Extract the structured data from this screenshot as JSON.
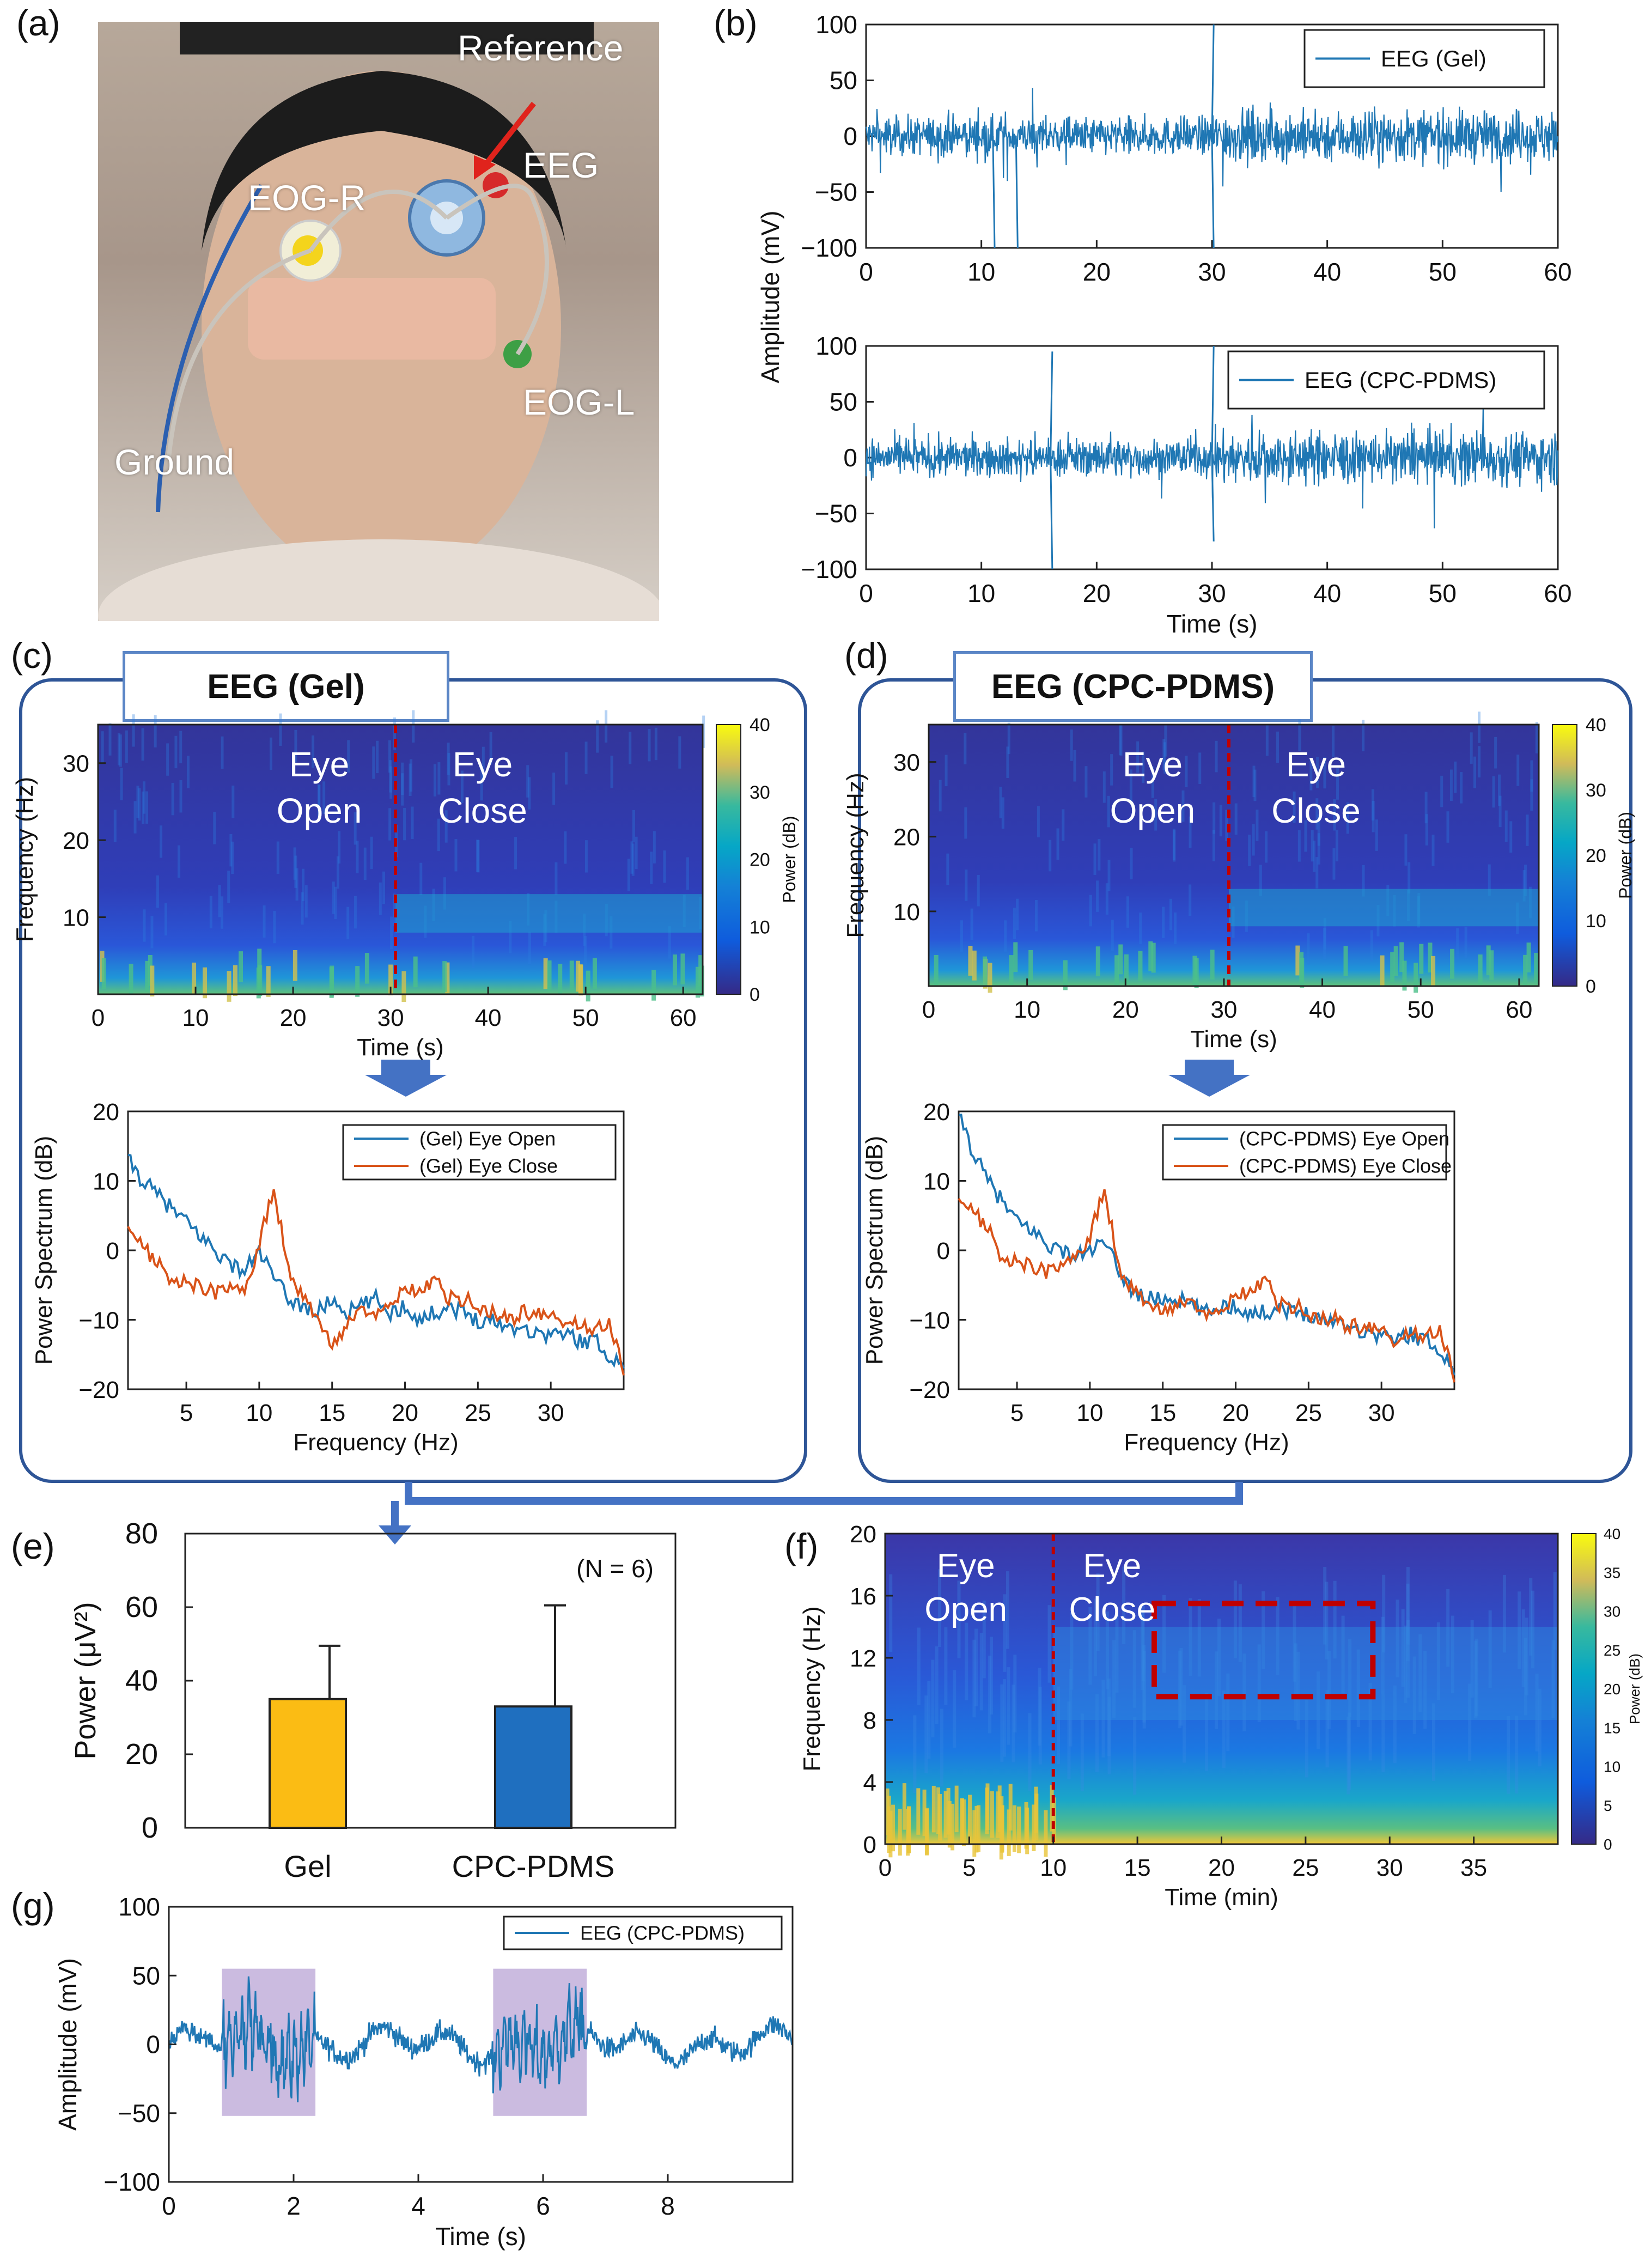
{
  "panels": {
    "a": "(a)",
    "b": "(b)",
    "c": "(c)",
    "d": "(d)",
    "e": "(e)",
    "f": "(f)",
    "g": "(g)"
  },
  "photo_labels": {
    "reference": "Reference",
    "eeg": "EEG",
    "eog_r": "EOG-R",
    "eog_l": "EOG-L",
    "ground": "Ground"
  },
  "box_titles": {
    "c": "EEG (Gel)",
    "d": "EEG (CPC-PDMS)"
  },
  "colors": {
    "blue_line": "#1f77b4",
    "orange_line": "#d95319",
    "box_border": "#2e5597",
    "arrow": "#4472c4",
    "bar_gel": "#fbbc14",
    "bar_cpc": "#1f6fbf",
    "highlight": "#b9a4d6",
    "marker": "#c00000"
  },
  "chart_data": [
    {
      "id": "b1",
      "type": "line",
      "ylabel": "Amplitude (mV)",
      "xlim": [
        0,
        60
      ],
      "ylim": [
        -100,
        100
      ],
      "xticks": [
        0,
        10,
        20,
        30,
        40,
        50,
        60
      ],
      "yticks": [
        -100,
        -50,
        0,
        50,
        100
      ],
      "ytick_labels": [
        "−100",
        "−50",
        "0",
        "50",
        "100"
      ],
      "series": [
        {
          "name": "EEG (Gel)",
          "trend": "noise around 0 with spikes near 11, 13 and 30 s"
        }
      ],
      "spikes": [
        [
          11,
          -100
        ],
        [
          13,
          -100
        ],
        [
          30,
          100
        ],
        [
          30,
          -100
        ]
      ]
    },
    {
      "id": "b2",
      "type": "line",
      "xlabel": "Time (s)",
      "xlim": [
        0,
        60
      ],
      "ylim": [
        -100,
        100
      ],
      "xticks": [
        0,
        10,
        20,
        30,
        40,
        50,
        60
      ],
      "yticks": [
        -100,
        -50,
        0,
        50,
        100
      ],
      "ytick_labels": [
        "−100",
        "−50",
        "0",
        "50",
        "100"
      ],
      "series": [
        {
          "name": "EEG (CPC-PDMS)",
          "trend": "noise around 0 with spikes near 16 and 30 s"
        }
      ],
      "spikes": [
        [
          16,
          95
        ],
        [
          16,
          -100
        ],
        [
          30,
          100
        ],
        [
          30,
          -75
        ]
      ]
    },
    {
      "id": "c_spec",
      "type": "heatmap",
      "xlabel": "Time (s)",
      "ylabel": "Frequency (Hz)",
      "xticks": [
        0,
        10,
        20,
        30,
        40,
        50,
        60
      ],
      "yticks": [
        10,
        20,
        30
      ],
      "xlim": [
        0,
        62
      ],
      "ylim": [
        0,
        35
      ],
      "divider_x": 30.5,
      "annotations": [
        "Eye\nOpen",
        "Eye\nClose"
      ],
      "colorbar": {
        "label": "Power (dB)",
        "ticks": [
          0,
          10,
          20,
          30,
          40
        ]
      }
    },
    {
      "id": "d_spec",
      "type": "heatmap",
      "xlabel": "Time (s)",
      "ylabel": "Frequency (Hz)",
      "xticks": [
        0,
        10,
        20,
        30,
        40,
        50,
        60
      ],
      "yticks": [
        10,
        20,
        30
      ],
      "xlim": [
        0,
        62
      ],
      "ylim": [
        0,
        35
      ],
      "divider_x": 30.5,
      "annotations": [
        "Eye\nOpen",
        "Eye\nClose"
      ],
      "colorbar": {
        "label": "Power (dB)",
        "ticks": [
          0,
          10,
          20,
          30,
          40
        ]
      }
    },
    {
      "id": "c_psd",
      "type": "line",
      "xlabel": "Frequency (Hz)",
      "ylabel": "Power Spectrum (dB)",
      "xlim": [
        1,
        35
      ],
      "ylim": [
        -20,
        20
      ],
      "xticks": [
        5,
        10,
        15,
        20,
        25,
        30
      ],
      "yticks": [
        -20,
        -10,
        0,
        10,
        20
      ],
      "ytick_labels": [
        "−20",
        "−10",
        "0",
        "10",
        "20"
      ],
      "series": [
        {
          "name": "(Gel) Eye Open",
          "x": [
            1,
            2,
            3,
            4,
            5,
            6,
            7,
            8,
            9,
            10,
            11,
            12,
            13,
            14,
            15,
            16,
            17,
            18,
            19,
            20,
            21,
            22,
            23,
            24,
            25,
            26,
            27,
            28,
            29,
            30,
            31,
            32,
            33,
            34,
            35
          ],
          "y": [
            13,
            10,
            8,
            6,
            4,
            2,
            0,
            -2,
            -3,
            0,
            -4,
            -7,
            -8,
            -9,
            -7,
            -9,
            -8,
            -7,
            -9,
            -8,
            -10,
            -9,
            -8,
            -9,
            -10,
            -10,
            -11,
            -11,
            -12,
            -12,
            -12,
            -13,
            -13,
            -15,
            -17
          ]
        },
        {
          "name": "(Gel) Eye Close",
          "x": [
            1,
            2,
            3,
            4,
            5,
            6,
            7,
            8,
            9,
            10,
            11,
            12,
            13,
            14,
            15,
            16,
            17,
            18,
            19,
            20,
            21,
            22,
            23,
            24,
            25,
            26,
            27,
            28,
            29,
            30,
            31,
            32,
            33,
            34,
            35
          ],
          "y": [
            3,
            1,
            -2,
            -4,
            -5,
            -5,
            -6,
            -5,
            -6,
            1,
            9,
            -3,
            -7,
            -10,
            -14,
            -11,
            -9,
            -9,
            -7,
            -6,
            -6,
            -4,
            -7,
            -7,
            -8,
            -9,
            -10,
            -9,
            -9,
            -10,
            -10,
            -11,
            -12,
            -10,
            -18
          ]
        }
      ]
    },
    {
      "id": "d_psd",
      "type": "line",
      "xlabel": "Frequency (Hz)",
      "ylabel": "Power Spectrum (dB)",
      "xlim": [
        1,
        35
      ],
      "ylim": [
        -20,
        20
      ],
      "xticks": [
        5,
        10,
        15,
        20,
        25,
        30
      ],
      "yticks": [
        -20,
        -10,
        0,
        10,
        20
      ],
      "ytick_labels": [
        "−20",
        "−10",
        "0",
        "10",
        "20"
      ],
      "series": [
        {
          "name": "(CPC-PDMS) Eye Open",
          "x": [
            1,
            2,
            3,
            4,
            5,
            6,
            7,
            8,
            9,
            10,
            11,
            12,
            13,
            14,
            15,
            16,
            17,
            18,
            19,
            20,
            21,
            22,
            23,
            24,
            25,
            26,
            27,
            28,
            29,
            30,
            31,
            32,
            33,
            34,
            35
          ],
          "y": [
            20,
            14,
            10,
            7,
            4,
            3,
            1,
            0,
            -1,
            0,
            1,
            -3,
            -6,
            -7,
            -7,
            -7,
            -8,
            -9,
            -8,
            -8,
            -9,
            -9,
            -8,
            -9,
            -9,
            -10,
            -10,
            -11,
            -12,
            -12,
            -13,
            -12,
            -13,
            -14,
            -18
          ]
        },
        {
          "name": "(CPC-PDMS) Eye Close",
          "x": [
            1,
            2,
            3,
            4,
            5,
            6,
            7,
            8,
            9,
            10,
            11,
            12,
            13,
            14,
            15,
            16,
            17,
            18,
            19,
            20,
            21,
            22,
            23,
            24,
            25,
            26,
            27,
            28,
            29,
            30,
            31,
            32,
            33,
            34,
            35
          ],
          "y": [
            7,
            6,
            3,
            -1,
            -2,
            -2,
            -3,
            -2,
            -1,
            2,
            9,
            -3,
            -6,
            -8,
            -9,
            -8,
            -8,
            -9,
            -8,
            -7,
            -6,
            -4,
            -8,
            -8,
            -9,
            -10,
            -10,
            -11,
            -11,
            -12,
            -13,
            -12,
            -13,
            -11,
            -19
          ]
        }
      ]
    },
    {
      "id": "e",
      "type": "bar",
      "ylabel": "Power (μV²)",
      "categories": [
        "Gel",
        "CPC-PDMS"
      ],
      "values": [
        35,
        33
      ],
      "errors": [
        14.5,
        27.5
      ],
      "ylim": [
        0,
        80
      ],
      "yticks": [
        0,
        20,
        40,
        60,
        80
      ],
      "annotation": "(N = 6)"
    },
    {
      "id": "f",
      "type": "heatmap",
      "xlabel": "Time (min)",
      "ylabel": "Frequency (Hz)",
      "xlim": [
        0,
        40
      ],
      "ylim": [
        0,
        20
      ],
      "xticks": [
        0,
        5,
        10,
        15,
        20,
        25,
        30,
        35
      ],
      "yticks": [
        0,
        4,
        8,
        12,
        16,
        20
      ],
      "divider_x": 10,
      "annotations": [
        "Eye\nOpen",
        "Eye\nClose"
      ],
      "box": {
        "x": [
          16,
          29
        ],
        "y": [
          9.5,
          15.5
        ]
      },
      "colorbar": {
        "label": "Power (dB)",
        "ticks": [
          0,
          5,
          10,
          15,
          20,
          25,
          30,
          35,
          40
        ]
      }
    },
    {
      "id": "g",
      "type": "line",
      "xlabel": "Time (s)",
      "ylabel": "Amplitude (mV)",
      "xlim": [
        0,
        10
      ],
      "ylim": [
        -100,
        100
      ],
      "xticks": [
        0,
        2,
        4,
        6,
        8
      ],
      "yticks": [
        -100,
        -50,
        0,
        50,
        100
      ],
      "ytick_labels": [
        "−100",
        "−50",
        "0",
        "50",
        "100"
      ],
      "series": [
        {
          "name": "EEG (CPC-PDMS)",
          "trend": "oscillation around 0, bursts at 0.8–2.3 s and 5.2–6.7 s"
        }
      ],
      "highlights": [
        [
          0.85,
          2.35
        ],
        [
          5.2,
          6.7
        ]
      ],
      "highlight_ylim": [
        -52,
        55
      ]
    }
  ]
}
